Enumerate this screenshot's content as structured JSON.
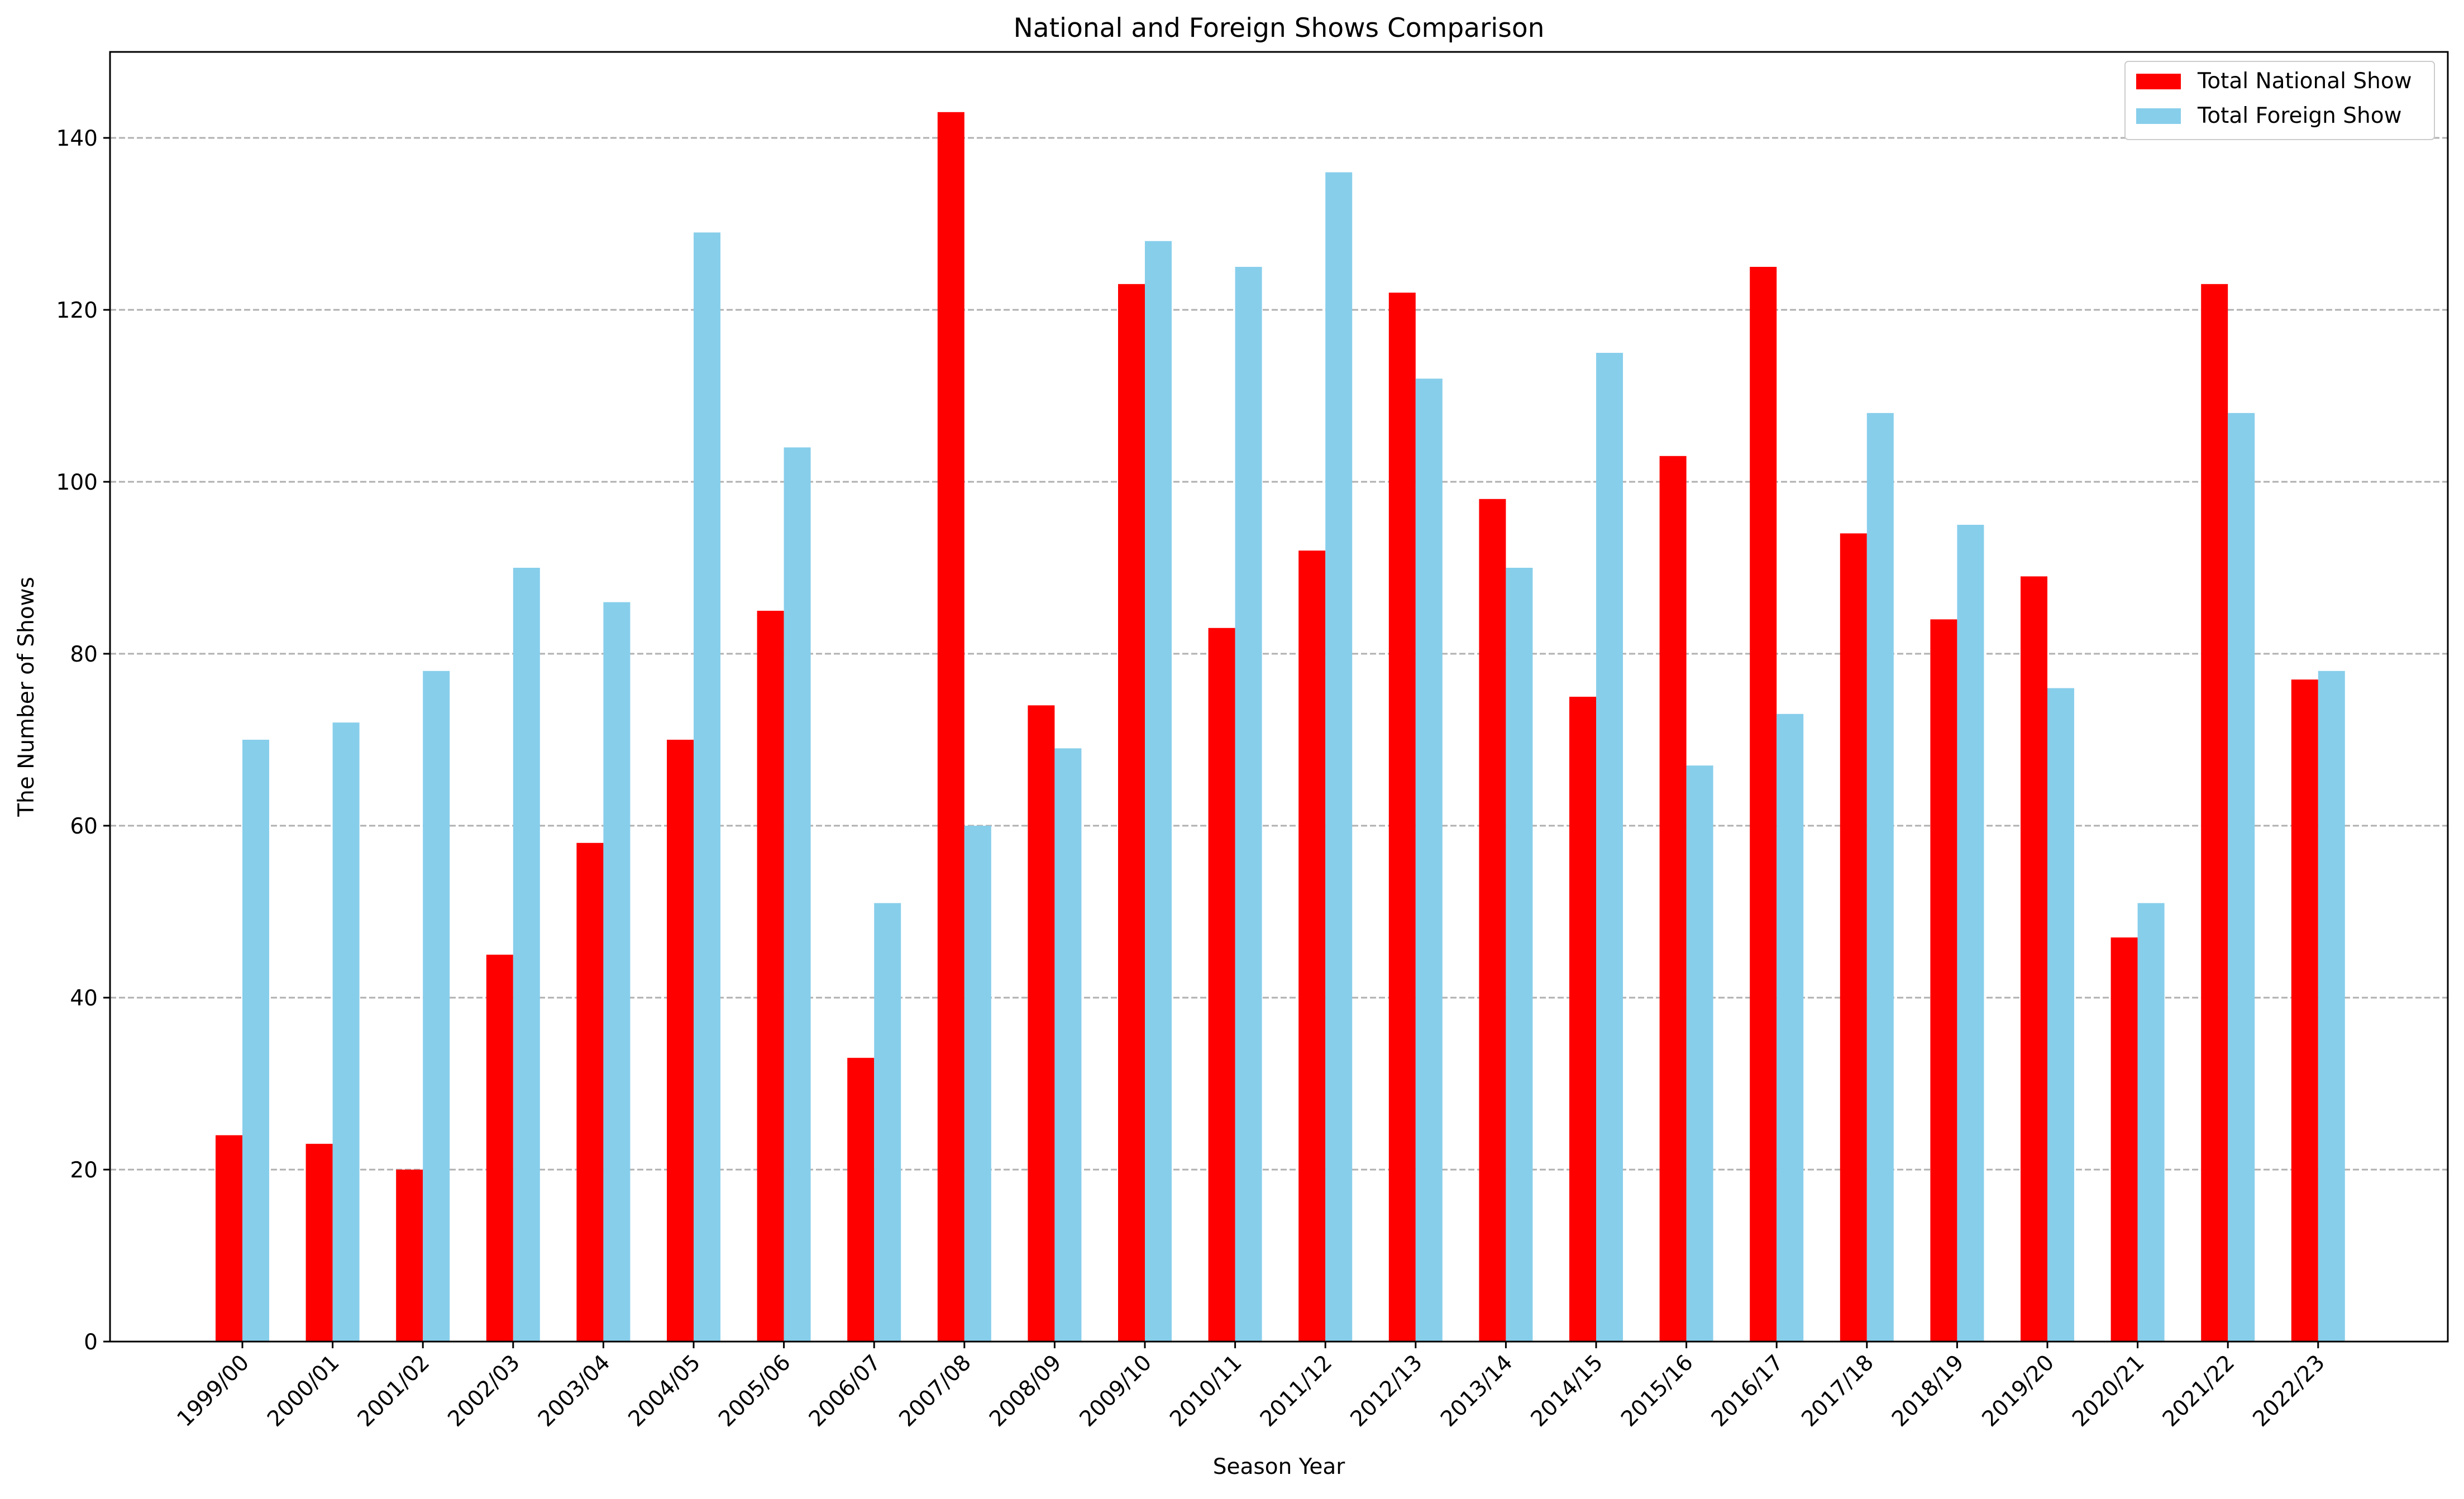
{
  "chart_data": {
    "type": "bar",
    "title": "National and Foreign Shows Comparison",
    "xlabel": "Season Year",
    "ylabel": "The Number of Shows",
    "ylim": [
      0,
      150
    ],
    "yticks": [
      "0",
      "20",
      "40",
      "60",
      "80",
      "100",
      "120",
      "140"
    ],
    "grid": "horizontal dashed",
    "legend_position": "top-right",
    "categories": [
      "1999/00",
      "2000/01",
      "2001/02",
      "2002/03",
      "2003/04",
      "2004/05",
      "2005/06",
      "2006/07",
      "2007/08",
      "2008/09",
      "2009/10",
      "2010/11",
      "2011/12",
      "2012/13",
      "2013/14",
      "2014/15",
      "2015/16",
      "2016/17",
      "2017/18",
      "2018/19",
      "2019/20",
      "2020/21",
      "2021/22",
      "2022/23"
    ],
    "series": [
      {
        "name": "Total National Show",
        "color": "#ff0000",
        "values": [
          24,
          23,
          20,
          45,
          58,
          70,
          85,
          33,
          143,
          74,
          123,
          83,
          92,
          122,
          98,
          75,
          103,
          125,
          94,
          84,
          89,
          47,
          123,
          77
        ]
      },
      {
        "name": "Total Foreign Show",
        "color": "#87ceeb",
        "values": [
          70,
          72,
          78,
          90,
          86,
          129,
          104,
          51,
          60,
          69,
          128,
          125,
          136,
          112,
          90,
          115,
          67,
          73,
          108,
          95,
          76,
          51,
          108,
          78
        ]
      }
    ]
  }
}
